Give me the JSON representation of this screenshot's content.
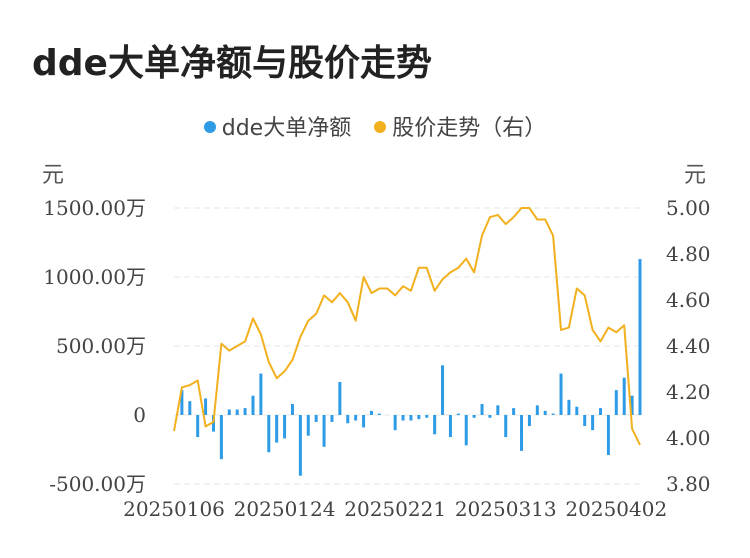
{
  "title": "dde大单净额与股价走势",
  "colors": {
    "bar": "#2e9be6",
    "line": "#f2b01e",
    "grid": "#e6e6e6"
  },
  "chart_data": {
    "type": "bar+line",
    "title": "dde大单净额与股价走势",
    "legend": {
      "position": "top-center",
      "entries": [
        "dde大单净额",
        "股价走势（右）"
      ]
    },
    "y_left": {
      "unit_label": "元",
      "ylim": [
        -500,
        1500
      ],
      "tick_labels": [
        "1500.00万",
        "1000.00万",
        "500.00万",
        "0",
        "-500.00万"
      ],
      "tick_values": [
        1500,
        1000,
        500,
        0,
        -500
      ]
    },
    "y_right": {
      "unit_label": "元",
      "ylim": [
        3.8,
        5.0
      ],
      "tick_labels": [
        "5.00",
        "4.80",
        "4.60",
        "4.40",
        "4.20",
        "4.00",
        "3.80"
      ],
      "tick_values": [
        5.0,
        4.8,
        4.6,
        4.4,
        4.2,
        4.0,
        3.8
      ]
    },
    "x_tick_labels": [
      "20250106",
      "20250124",
      "20250221",
      "20250313",
      "20250402"
    ],
    "x_tick_index": [
      0,
      14,
      28,
      42,
      56
    ],
    "grid": true,
    "series": [
      {
        "name": "dde大单净额",
        "type": "bar",
        "axis": "left",
        "values": [
          0,
          180,
          100,
          -160,
          120,
          -120,
          -320,
          40,
          40,
          50,
          140,
          300,
          -270,
          -200,
          -170,
          80,
          -440,
          -150,
          -50,
          -230,
          -50,
          240,
          -60,
          -40,
          -90,
          30,
          10,
          0,
          -110,
          -40,
          -40,
          -30,
          -20,
          -140,
          360,
          -160,
          10,
          -220,
          -20,
          80,
          -20,
          70,
          -160,
          50,
          -260,
          -80,
          70,
          30,
          10,
          300,
          110,
          60,
          -80,
          -110,
          50,
          -290,
          180,
          270,
          140,
          1130
        ]
      },
      {
        "name": "股价走势（右）",
        "type": "line",
        "axis": "right",
        "values": [
          4.03,
          4.22,
          4.23,
          4.25,
          4.05,
          4.07,
          4.41,
          4.38,
          4.4,
          4.42,
          4.52,
          4.45,
          4.33,
          4.26,
          4.29,
          4.34,
          4.44,
          4.51,
          4.54,
          4.62,
          4.59,
          4.63,
          4.59,
          4.51,
          4.7,
          4.63,
          4.65,
          4.65,
          4.62,
          4.66,
          4.64,
          4.74,
          4.74,
          4.64,
          4.69,
          4.72,
          4.74,
          4.78,
          4.72,
          4.88,
          4.96,
          4.97,
          4.93,
          4.96,
          5.0,
          5.0,
          4.95,
          4.95,
          4.88,
          4.47,
          4.48,
          4.65,
          4.62,
          4.47,
          4.42,
          4.48,
          4.46,
          4.49,
          4.04,
          3.97
        ]
      }
    ]
  }
}
